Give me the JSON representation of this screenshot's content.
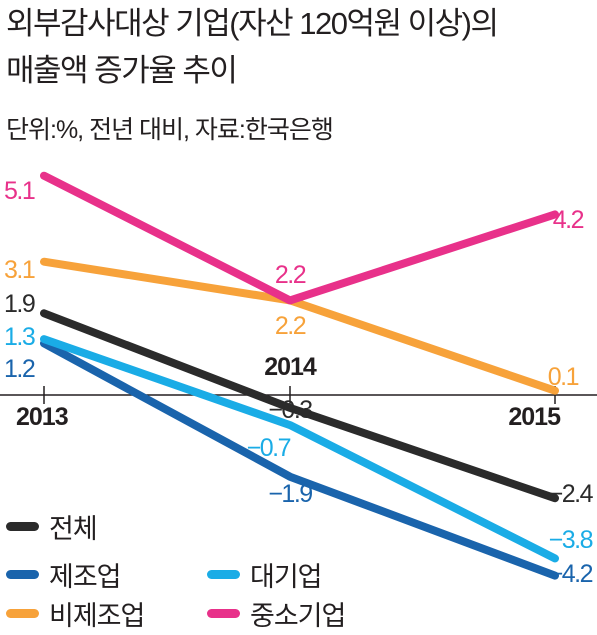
{
  "title_lines": [
    "외부감사대상 기업(자산 120억원 이상)의",
    "매출액 증가율 추이"
  ],
  "subtitle": "단위:%, 전년 대비, 자료:한국은행",
  "colors": {
    "total": "#2b2b2b",
    "manufacturing": "#1a64ac",
    "large": "#1aace6",
    "non_manufacturing": "#f7a23a",
    "sme": "#e8318a",
    "axis": "#231f20"
  },
  "chart_data": {
    "type": "line",
    "title": "외부감사대상 기업(자산 120억원 이상)의 매출액 증가율 추이",
    "subtitle": "단위:%, 전년 대비, 자료:한국은행",
    "x": [
      "2013",
      "2014",
      "2015"
    ],
    "ylim": [
      -4.5,
      5.5
    ],
    "grid": false,
    "legend": "bottom-left",
    "series": [
      {
        "key": "total",
        "name": "전체",
        "values": [
          1.9,
          -0.3,
          -2.4
        ],
        "labels": [
          "1.9",
          "−0.3",
          "−2.4"
        ]
      },
      {
        "key": "manufacturing",
        "name": "제조업",
        "values": [
          1.2,
          -1.9,
          -4.2
        ],
        "labels": [
          "1.2",
          "−1.9",
          "−4.2"
        ]
      },
      {
        "key": "large",
        "name": "대기업",
        "values": [
          1.3,
          -0.7,
          -3.8
        ],
        "labels": [
          "1.3",
          "−0.7",
          "−3.8"
        ]
      },
      {
        "key": "non_manufacturing",
        "name": "비제조업",
        "values": [
          3.1,
          2.2,
          0.1
        ],
        "labels": [
          "3.1",
          "2.2",
          "0.1"
        ]
      },
      {
        "key": "sme",
        "name": "중소기업",
        "values": [
          5.1,
          2.2,
          4.2
        ],
        "labels": [
          "5.1",
          "2.2",
          "4.2"
        ]
      }
    ]
  },
  "legend_items": [
    "전체",
    "제조업",
    "대기업",
    "비제조업",
    "중소기업"
  ]
}
